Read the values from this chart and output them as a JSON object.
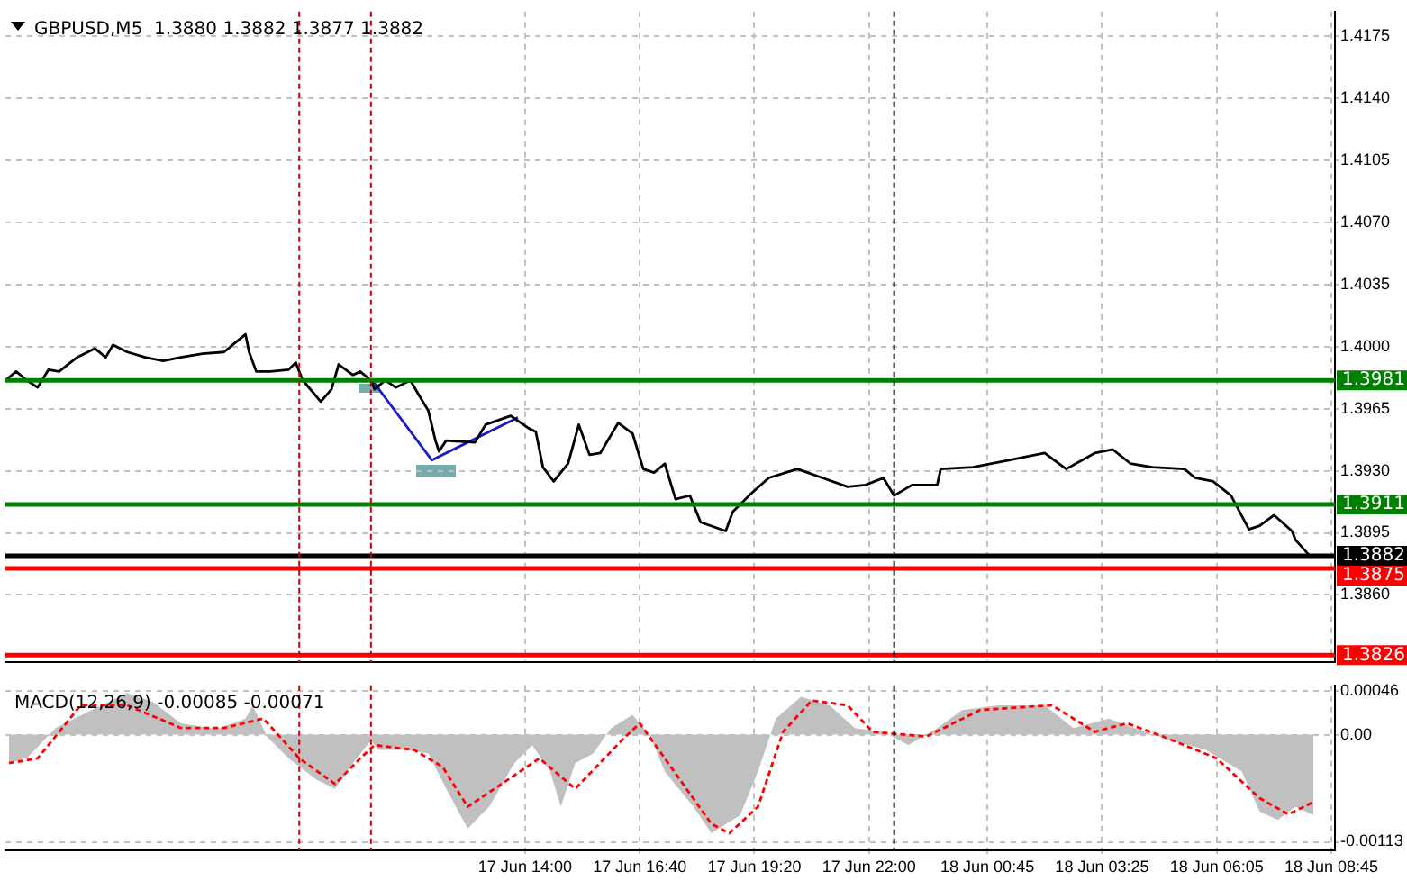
{
  "chart_data": [
    {
      "type": "line",
      "title": "GBPUSD,M5  1.3880 1.3882 1.3877 1.3882",
      "xlim": [
        "--06-17T01:55",
        "--06-18T08:50"
      ],
      "ylim": [
        1.3822,
        1.4189
      ],
      "xticks": [
        {
          "value": "--06-17T14:00",
          "label": null
        },
        {
          "value": "--06-17T16:40",
          "label": null
        },
        {
          "value": "--06-17T19:20",
          "label": null
        },
        {
          "value": "--06-17T22:00",
          "label": null
        },
        {
          "value": "--06-18T00:45",
          "label": null
        },
        {
          "value": "--06-18T03:25",
          "label": null
        },
        {
          "value": "--06-18T06:05",
          "label": null
        },
        {
          "value": "--06-18T08:45",
          "label": null
        }
      ],
      "yticks": [
        {
          "value": 1.386,
          "label": "1.3860"
        },
        {
          "value": 1.3895,
          "label": "1.3895"
        },
        {
          "value": 1.393,
          "label": "1.3930"
        },
        {
          "value": 1.3965,
          "label": "1.3965"
        },
        {
          "value": 1.4,
          "label": "1.4000"
        },
        {
          "value": 1.4035,
          "label": "1.4035"
        },
        {
          "value": 1.407,
          "label": "1.4070"
        },
        {
          "value": 1.4105,
          "label": "1.4105"
        },
        {
          "value": 1.414,
          "label": "1.4140"
        },
        {
          "value": 1.4175,
          "label": "1.4175"
        }
      ],
      "tick_labels": "y",
      "grid": true,
      "legend": false,
      "series": [
        {
          "type": "line",
          "color": "#000000",
          "x": [
            "--06-17T01:55",
            "--06-17T02:10",
            "--06-17T02:25",
            "--06-17T02:40",
            "--06-17T02:55",
            "--06-17T03:10",
            "--06-17T03:35",
            "--06-17T04:00",
            "--06-17T04:15",
            "--06-17T04:25",
            "--06-17T04:45",
            "--06-17T05:10",
            "--06-17T05:35",
            "--06-17T06:00",
            "--06-17T06:30",
            "--06-17T07:00",
            "--06-17T07:15",
            "--06-17T07:30",
            "--06-17T07:35",
            "--06-17T07:45",
            "--06-17T08:05",
            "--06-17T08:30",
            "--06-17T08:40",
            "--06-17T08:50",
            "--06-17T09:15",
            "--06-17T09:30",
            "--06-17T09:40",
            "--06-17T10:00",
            "--06-17T10:10",
            "--06-17T10:25",
            "--06-17T10:30",
            "--06-17T10:45",
            "--06-17T11:00",
            "--06-17T11:20",
            "--06-17T11:30",
            "--06-17T11:45",
            "--06-17T11:55",
            "--06-17T12:00",
            "--06-17T12:10",
            "--06-17T12:50",
            "--06-17T13:05",
            "--06-17T13:40",
            "--06-17T14:05",
            "--06-17T14:15",
            "--06-17T14:25",
            "--06-17T14:40",
            "--06-17T15:00",
            "--06-17T15:15",
            "--06-17T15:30",
            "--06-17T15:45",
            "--06-17T16:10",
            "--06-17T16:30",
            "--06-17T16:45",
            "--06-17T17:00",
            "--06-17T17:15",
            "--06-17T17:30",
            "--06-17T17:50",
            "--06-17T18:05",
            "--06-17T18:40",
            "--06-17T18:50",
            "--06-17T19:15",
            "--06-17T19:40",
            "--06-17T20:20",
            "--06-17T20:55",
            "--06-17T21:30",
            "--06-17T21:55",
            "--06-17T22:20",
            "--06-17T22:35",
            "--06-17T23:00",
            "--06-17T23:35",
            "--06-17T23:40",
            "--06-18T00:25",
            "--06-18T01:15",
            "--06-18T02:05",
            "--06-18T02:35",
            "--06-18T03:15",
            "--06-18T03:40",
            "--06-18T04:05",
            "--06-18T04:35",
            "--06-18T05:20",
            "--06-18T05:35",
            "--06-18T06:00",
            "--06-18T06:25",
            "--06-18T06:50",
            "--06-18T07:05",
            "--06-18T07:25",
            "--06-18T07:50",
            "--06-18T07:55",
            "--06-18T08:15"
          ],
          "values": [
            1.3981,
            1.3986,
            1.3981,
            1.3977,
            1.3987,
            1.3986,
            1.3994,
            1.3999,
            1.3994,
            1.4001,
            1.3997,
            1.3994,
            1.3992,
            1.3994,
            1.3996,
            1.3997,
            1.4002,
            1.4007,
            1.3997,
            1.3986,
            1.3986,
            1.3987,
            1.3991,
            1.3981,
            1.3969,
            1.3976,
            1.399,
            1.3984,
            1.3986,
            1.3981,
            1.3976,
            1.3981,
            1.3977,
            1.3981,
            1.3974,
            1.3964,
            1.3947,
            1.3941,
            1.3947,
            1.3946,
            1.3956,
            1.3961,
            1.3954,
            1.3952,
            1.3932,
            1.3924,
            1.3934,
            1.3956,
            1.3939,
            1.394,
            1.3957,
            1.3951,
            1.3931,
            1.3929,
            1.3934,
            1.3914,
            1.3916,
            1.3901,
            1.3896,
            1.3907,
            1.3917,
            1.3926,
            1.3931,
            1.3926,
            1.3921,
            1.3922,
            1.3926,
            1.3916,
            1.3922,
            1.3922,
            1.3931,
            1.3932,
            1.3936,
            1.394,
            1.3931,
            1.394,
            1.3942,
            1.3934,
            1.3932,
            1.3931,
            1.3926,
            1.3924,
            1.3916,
            1.3897,
            1.3899,
            1.3905,
            1.3896,
            1.3891,
            1.3882
          ]
        },
        {
          "type": "line",
          "color": "#1a1acc",
          "x": [
            "--06-17T10:25",
            "--06-17T11:50",
            "--06-17T13:50"
          ],
          "values": [
            1.3982,
            1.3936,
            1.396
          ]
        }
      ],
      "ref_lines": [
        {
          "axis": "y",
          "value": 1.3981,
          "label": "1.3981",
          "color": "#008000"
        },
        {
          "axis": "y",
          "value": 1.3911,
          "label": "1.3911",
          "color": "#008000"
        },
        {
          "axis": "y",
          "value": 1.3882,
          "label": "1.3882",
          "color": "#000000"
        },
        {
          "axis": "y",
          "value": 1.3875,
          "label": "1.3875",
          "color": "#ff0000"
        },
        {
          "axis": "y",
          "value": 1.3826,
          "label": "1.3826",
          "color": "#ff0000"
        },
        {
          "axis": "x",
          "value": "--06-17T08:45",
          "color": "#cc0000",
          "line_style": "dashed"
        },
        {
          "axis": "x",
          "value": "--06-17T10:25",
          "color": "#cc0000",
          "line_style": "dashed"
        },
        {
          "axis": "x",
          "value": "--06-17T22:35",
          "color": "#000000",
          "line_style": "dashed"
        }
      ]
    },
    {
      "type": "line",
      "title": "MACD(12,26,9) -0.00085 -0.00071",
      "xlim": [
        "--06-17T01:55",
        "--06-18T08:50"
      ],
      "ylim": [
        -0.00122,
        0.00052
      ],
      "xticks": [
        {
          "value": "--06-17T14:00",
          "label": "17 Jun 14:00"
        },
        {
          "value": "--06-17T16:40",
          "label": "17 Jun 16:40"
        },
        {
          "value": "--06-17T19:20",
          "label": "17 Jun 19:20"
        },
        {
          "value": "--06-17T22:00",
          "label": "17 Jun 22:00"
        },
        {
          "value": "--06-18T00:45",
          "label": "18 Jun 00:45"
        },
        {
          "value": "--06-18T03:25",
          "label": "18 Jun 03:25"
        },
        {
          "value": "--06-18T06:05",
          "label": "18 Jun 06:05"
        },
        {
          "value": "--06-18T08:45",
          "label": "18 Jun 08:45"
        }
      ],
      "yticks": [
        -0.00113,
        {
          "value": 0,
          "label": "0.00"
        },
        0.00046
      ],
      "grid": true,
      "legend": false,
      "series": [
        {
          "type": "area",
          "color": "#c0c0c0",
          "x": [
            "--06-17T02:00",
            "--06-17T02:25",
            "--06-17T03:05",
            "--06-17T03:55",
            "--06-17T04:45",
            "--06-17T05:20",
            "--06-17T06:00",
            "--06-17T06:50",
            "--06-17T07:30",
            "--06-17T07:40",
            "--06-17T08:00",
            "--06-17T08:30",
            "--06-17T09:10",
            "--06-17T09:35",
            "--06-17T10:00",
            "--06-17T10:25",
            "--06-17T10:35",
            "--06-17T11:15",
            "--06-17T11:45",
            "--06-17T12:10",
            "--06-17T12:40",
            "--06-17T13:10",
            "--06-17T13:45",
            "--06-17T14:10",
            "--06-17T14:35",
            "--06-17T14:50",
            "--06-17T15:10",
            "--06-17T15:35",
            "--06-17T16:00",
            "--06-17T16:30",
            "--06-17T16:55",
            "--06-17T17:15",
            "--06-17T17:55",
            "--06-17T18:20",
            "--06-17T19:00",
            "--06-17T19:25",
            "--06-17T19:50",
            "--06-17T20:25",
            "--06-17T21:05",
            "--06-17T21:40",
            "--06-17T22:20",
            "--06-17T22:55",
            "--06-17T23:35",
            "--06-18T00:10",
            "--06-18T01:00",
            "--06-18T02:05",
            "--06-18T02:45",
            "--06-18T03:35",
            "--06-18T04:10",
            "--06-18T05:00",
            "--06-18T05:50",
            "--06-18T06:40",
            "--06-18T07:05",
            "--06-18T07:30",
            "--06-18T07:55",
            "--06-18T08:20"
          ],
          "values": [
            -0.0003,
            -0.00025,
            7e-05,
            0.00026,
            0.00044,
            0.00035,
            0.00012,
            6e-05,
            0.00017,
            0.00031,
            -2e-05,
            -0.00025,
            -0.00048,
            -0.00057,
            -0.0003,
            -6e-05,
            -0.00016,
            -0.00016,
            -0.0002,
            -0.00057,
            -0.00099,
            -0.00076,
            -0.0003,
            -0.00011,
            -0.00039,
            -0.00076,
            -0.0003,
            -0.0002,
            7e-05,
            0.00021,
            -2e-05,
            -0.00039,
            -0.00076,
            -0.00104,
            -0.00085,
            -0.00039,
            0.00017,
            0.0004,
            0.00031,
            7e-05,
            3e-05,
            -0.00011,
            7e-05,
            0.00026,
            0.00031,
            0.00031,
            7e-05,
            0.00017,
            7e-05,
            -6e-05,
            -0.00016,
            -0.00039,
            -0.00081,
            -0.0009,
            -0.00076,
            -0.00085
          ]
        },
        {
          "type": "line",
          "color": "#ff0000",
          "line_style": "dashed",
          "x": [
            "--06-17T02:00",
            "--06-17T02:40",
            "--06-17T03:40",
            "--06-17T04:45",
            "--06-17T06:00",
            "--06-17T07:00",
            "--06-17T07:55",
            "--06-17T08:45",
            "--06-17T09:35",
            "--06-17T10:10",
            "--06-17T10:30",
            "--06-17T11:25",
            "--06-17T12:05",
            "--06-17T12:40",
            "--06-17T13:45",
            "--06-17T14:20",
            "--06-17T15:10",
            "--06-17T16:15",
            "--06-17T16:40",
            "--06-17T17:15",
            "--06-17T18:20",
            "--06-17T18:45",
            "--06-17T19:25",
            "--06-17T20:00",
            "--06-17T20:40",
            "--06-17T21:30",
            "--06-17T22:05",
            "--06-17T23:20",
            "--06-18T00:35",
            "--06-18T02:15",
            "--06-18T03:15",
            "--06-18T04:00",
            "--06-18T04:50",
            "--06-18T06:05",
            "--06-18T07:05",
            "--06-18T07:45",
            "--06-18T08:20"
          ],
          "values": [
            -0.0003,
            -0.00025,
            0.00031,
            0.00031,
            7e-05,
            7e-05,
            0.00017,
            -0.00025,
            -0.00052,
            -0.00025,
            -0.00011,
            -0.00016,
            -0.00034,
            -0.00076,
            -0.00043,
            -0.00025,
            -0.00057,
            -6e-05,
            0.00012,
            -0.00025,
            -0.00094,
            -0.00104,
            -0.00076,
            3e-05,
            0.00036,
            0.00031,
            3e-05,
            -2e-05,
            0.00026,
            0.00031,
            3e-05,
            0.00012,
            -2e-05,
            -0.00025,
            -0.00067,
            -0.00084,
            -0.00071
          ]
        }
      ],
      "ref_lines": [
        {
          "axis": "x",
          "value": "--06-17T08:45",
          "color": "#cc0000",
          "line_style": "dashed"
        },
        {
          "axis": "x",
          "value": "--06-17T10:25",
          "color": "#cc0000",
          "line_style": "dashed"
        },
        {
          "axis": "x",
          "value": "--06-17T22:35",
          "color": "#000000",
          "line_style": "dashed"
        }
      ]
    }
  ]
}
